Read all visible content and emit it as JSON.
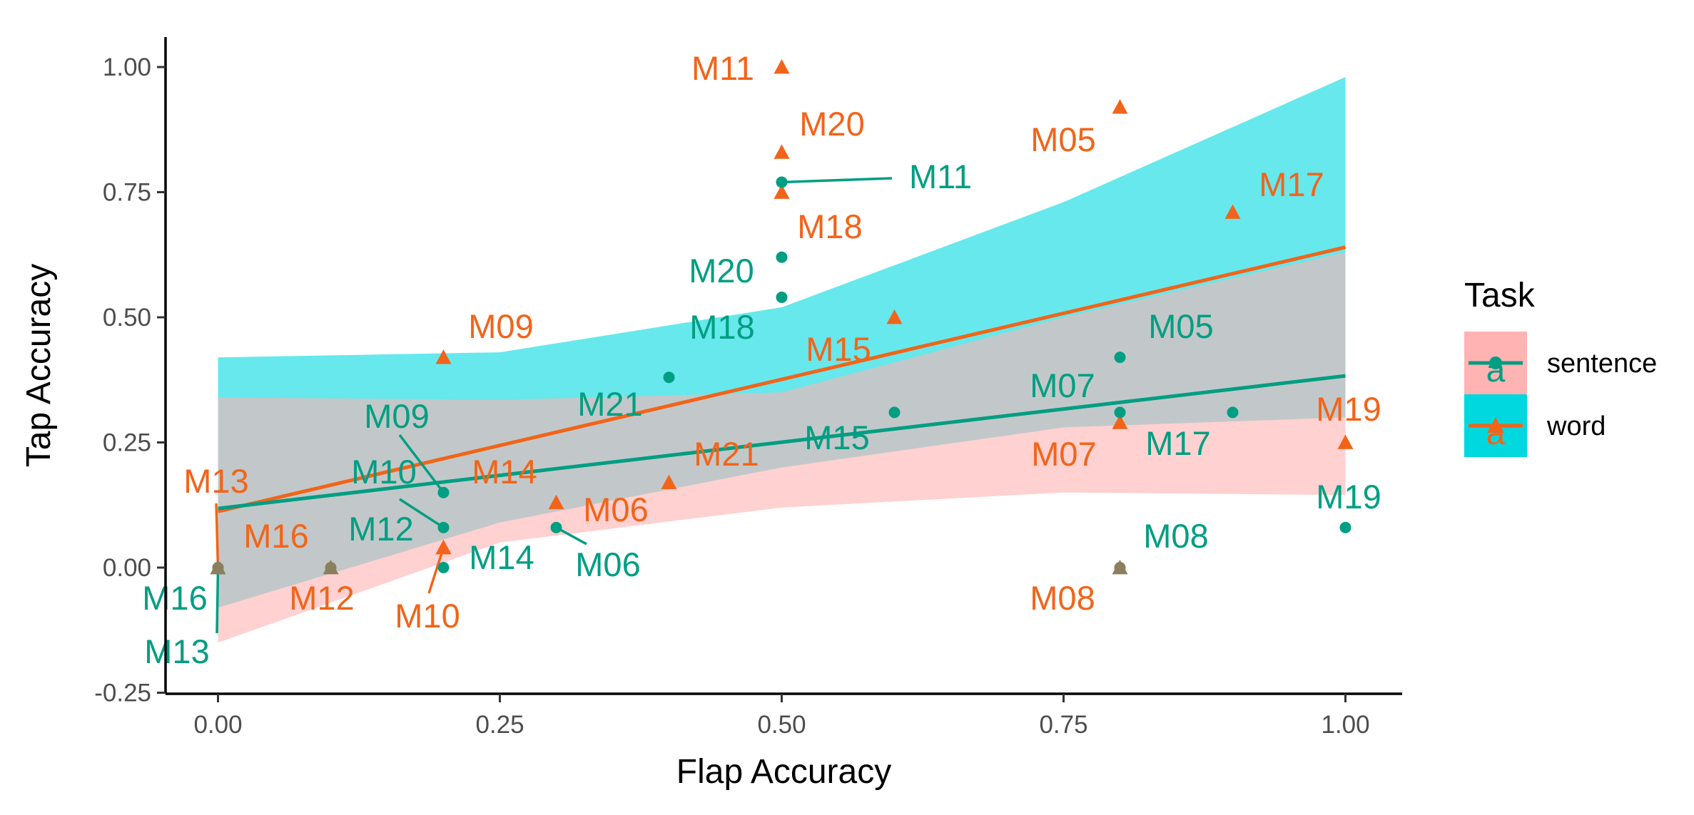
{
  "chart_data": {
    "type": "scatter",
    "xlabel": "Flap Accuracy",
    "ylabel": "Tap Accuracy",
    "xlim": [
      -0.05,
      1.05
    ],
    "ylim": [
      -0.25,
      1.05
    ],
    "x_ticks": [
      0.0,
      0.25,
      0.5,
      0.75,
      1.0
    ],
    "x_tick_labels": [
      "0.00",
      "0.25",
      "0.50",
      "0.75",
      "1.00"
    ],
    "y_ticks": [
      -0.25,
      0.0,
      0.25,
      0.5,
      0.75,
      1.0
    ],
    "y_tick_labels": [
      "-0.25",
      "0.00",
      "0.25",
      "0.50",
      "0.75",
      "1.00"
    ],
    "grid": false,
    "legend": {
      "title": "Task",
      "position": "right",
      "entries": [
        {
          "label": "sentence",
          "glyph": "a"
        },
        {
          "label": "word",
          "glyph": "a"
        }
      ]
    },
    "colors": {
      "sentence": "#009E82",
      "word": "#F26419",
      "sentence_band": "#FFB3B3",
      "word_band": "#00D8DF",
      "overlap_point": "#8A7F5E",
      "axis": "#000000",
      "tick_text": "#4D4D4D"
    },
    "series": [
      {
        "name": "sentence",
        "marker": "circle",
        "regression": {
          "intercept": 0.118,
          "slope": 0.265
        },
        "band_lower": [
          [
            0.0,
            -0.15
          ],
          [
            0.25,
            0.05
          ],
          [
            0.5,
            0.12
          ],
          [
            0.75,
            0.15
          ],
          [
            1.0,
            0.145
          ]
        ],
        "band_upper": [
          [
            0.0,
            0.34
          ],
          [
            0.25,
            0.335
          ],
          [
            0.5,
            0.35
          ],
          [
            0.75,
            0.5
          ],
          [
            1.0,
            0.63
          ]
        ],
        "points": [
          {
            "id": "M16",
            "x": 0.0,
            "y": 0.0,
            "label": "M16"
          },
          {
            "id": "M13",
            "x": 0.0,
            "y": 0.0,
            "label": "M13"
          },
          {
            "id": "M12",
            "x": 0.1,
            "y": 0.0,
            "label": "M12"
          },
          {
            "id": "M09",
            "x": 0.2,
            "y": 0.15,
            "label": "M09"
          },
          {
            "id": "M10",
            "x": 0.2,
            "y": 0.08,
            "label": "M10"
          },
          {
            "id": "M14",
            "x": 0.2,
            "y": 0.0,
            "label": "M14"
          },
          {
            "id": "M06",
            "x": 0.3,
            "y": 0.08,
            "label": "M06"
          },
          {
            "id": "M21",
            "x": 0.4,
            "y": 0.38,
            "label": "M21"
          },
          {
            "id": "M11",
            "x": 0.5,
            "y": 0.77,
            "label": "M11"
          },
          {
            "id": "M20",
            "x": 0.5,
            "y": 0.62,
            "label": "M20"
          },
          {
            "id": "M18",
            "x": 0.5,
            "y": 0.54,
            "label": "M18"
          },
          {
            "id": "M15",
            "x": 0.6,
            "y": 0.31,
            "label": "M15"
          },
          {
            "id": "M05",
            "x": 0.8,
            "y": 0.42,
            "label": "M05"
          },
          {
            "id": "M07",
            "x": 0.8,
            "y": 0.31,
            "label": "M07"
          },
          {
            "id": "M08",
            "x": 0.8,
            "y": 0.0,
            "label": "M08"
          },
          {
            "id": "M17",
            "x": 0.9,
            "y": 0.31,
            "label": "M17"
          },
          {
            "id": "M19",
            "x": 1.0,
            "y": 0.08,
            "label": "M19"
          }
        ]
      },
      {
        "name": "word",
        "marker": "triangle",
        "regression": {
          "intercept": 0.112,
          "slope": 0.528
        },
        "band_lower": [
          [
            0.0,
            -0.08
          ],
          [
            0.25,
            0.09
          ],
          [
            0.5,
            0.2
          ],
          [
            0.75,
            0.28
          ],
          [
            1.0,
            0.3
          ]
        ],
        "band_upper": [
          [
            0.0,
            0.42
          ],
          [
            0.25,
            0.43
          ],
          [
            0.5,
            0.52
          ],
          [
            0.75,
            0.73
          ],
          [
            1.0,
            0.98
          ]
        ],
        "points": [
          {
            "id": "M13",
            "x": 0.0,
            "y": 0.0,
            "label": "M13"
          },
          {
            "id": "M16",
            "x": 0.0,
            "y": 0.0,
            "label": "M16"
          },
          {
            "id": "M12",
            "x": 0.1,
            "y": 0.0,
            "label": "M12"
          },
          {
            "id": "M09",
            "x": 0.2,
            "y": 0.42,
            "label": "M09"
          },
          {
            "id": "M10",
            "x": 0.2,
            "y": 0.04,
            "label": "M10"
          },
          {
            "id": "M14",
            "x": 0.2,
            "y": 0.04,
            "label": "M14"
          },
          {
            "id": "M06",
            "x": 0.3,
            "y": 0.13,
            "label": "M06"
          },
          {
            "id": "M21",
            "x": 0.4,
            "y": 0.17,
            "label": "M21"
          },
          {
            "id": "M11",
            "x": 0.5,
            "y": 1.0,
            "label": "M11"
          },
          {
            "id": "M20",
            "x": 0.5,
            "y": 0.83,
            "label": "M20"
          },
          {
            "id": "M18",
            "x": 0.5,
            "y": 0.75,
            "label": "M18"
          },
          {
            "id": "M15",
            "x": 0.6,
            "y": 0.5,
            "label": "M15"
          },
          {
            "id": "M05",
            "x": 0.8,
            "y": 0.92,
            "label": "M05"
          },
          {
            "id": "M07",
            "x": 0.8,
            "y": 0.29,
            "label": "M07"
          },
          {
            "id": "M08",
            "x": 0.8,
            "y": 0.0,
            "label": "M08"
          },
          {
            "id": "M17",
            "x": 0.9,
            "y": 0.71,
            "label": "M17"
          },
          {
            "id": "M19",
            "x": 1.0,
            "y": 0.25,
            "label": "M19"
          }
        ]
      }
    ]
  }
}
